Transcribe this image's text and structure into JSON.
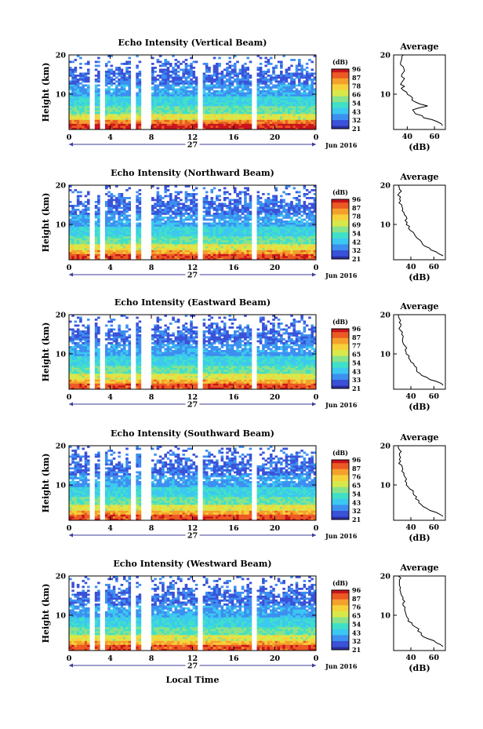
{
  "chart_data": [
    {
      "type": "heatmap",
      "title": "Echo Intensity (Vertical Beam)",
      "ylabel": "Height (km)",
      "y_ticks": [
        "20",
        "10"
      ],
      "x_ticks": [
        "0",
        "4",
        "8",
        "12",
        "16",
        "20",
        "0"
      ],
      "xlim": [
        0,
        24
      ],
      "ylim": [
        1,
        20
      ],
      "date_label": "27",
      "month_label": "Jun 2016",
      "colorbar": {
        "unit": "(dB)",
        "ticks": [
          "96",
          "87",
          "78",
          "66",
          "54",
          "43",
          "32",
          "21"
        ]
      },
      "average_profile": {
        "title": "Average",
        "xlabel": "(dB)",
        "x_ticks": [
          "40",
          "60"
        ],
        "y_ticks": [
          "20",
          "10"
        ],
        "xlim": [
          30,
          68
        ],
        "height": [
          2,
          3,
          4,
          5,
          6,
          7,
          8,
          9,
          10,
          11,
          12,
          13,
          14,
          15,
          16,
          17,
          18,
          19,
          20
        ],
        "value": [
          66,
          62,
          52,
          46,
          44,
          55,
          46,
          44,
          40,
          37,
          38,
          36,
          38,
          36,
          38,
          37,
          35,
          36,
          37
        ]
      }
    },
    {
      "type": "heatmap",
      "title": "Echo Intensity (Northward Beam)",
      "ylabel": "Height (km)",
      "y_ticks": [
        "20",
        "10"
      ],
      "x_ticks": [
        "0",
        "4",
        "8",
        "12",
        "16",
        "20",
        "0"
      ],
      "xlim": [
        0,
        24
      ],
      "ylim": [
        1,
        20
      ],
      "date_label": "27",
      "month_label": "Jun 2016",
      "colorbar": {
        "unit": "(dB)",
        "ticks": [
          "96",
          "87",
          "78",
          "69",
          "54",
          "42",
          "32",
          "21"
        ]
      },
      "average_profile": {
        "title": "Average",
        "xlabel": "(dB)",
        "x_ticks": [
          "40",
          "60"
        ],
        "y_ticks": [
          "20",
          "10"
        ],
        "xlim": [
          25,
          70
        ],
        "height": [
          2,
          3,
          4,
          5,
          6,
          7,
          8,
          9,
          10,
          11,
          12,
          13,
          14,
          15,
          16,
          17,
          18,
          19,
          20
        ],
        "value": [
          68,
          62,
          56,
          50,
          48,
          44,
          42,
          38,
          36,
          35,
          36,
          34,
          33,
          32,
          31,
          31,
          30,
          30,
          29
        ]
      }
    },
    {
      "type": "heatmap",
      "title": "Echo Intensity (Eastward Beam)",
      "ylabel": "Height (km)",
      "y_ticks": [
        "20",
        "10"
      ],
      "x_ticks": [
        "0",
        "4",
        "8",
        "12",
        "16",
        "20",
        "0"
      ],
      "xlim": [
        0,
        24
      ],
      "ylim": [
        1,
        20
      ],
      "date_label": "27",
      "month_label": "Jun 2016",
      "colorbar": {
        "unit": "(dB)",
        "ticks": [
          "96",
          "87",
          "77",
          "65",
          "54",
          "43",
          "33",
          "21"
        ]
      },
      "average_profile": {
        "title": "Average",
        "xlabel": "(dB)",
        "x_ticks": [
          "40",
          "60"
        ],
        "y_ticks": [
          "20",
          "10"
        ],
        "xlim": [
          25,
          70
        ],
        "height": [
          2,
          3,
          4,
          5,
          6,
          7,
          8,
          9,
          10,
          11,
          12,
          13,
          14,
          15,
          16,
          17,
          18,
          19,
          20
        ],
        "value": [
          68,
          62,
          54,
          48,
          45,
          43,
          40,
          38,
          36,
          35,
          35,
          33,
          33,
          32,
          31,
          31,
          30,
          30,
          29
        ]
      }
    },
    {
      "type": "heatmap",
      "title": "Echo Intensity (Southward Beam)",
      "ylabel": "Height (km)",
      "y_ticks": [
        "20",
        "10"
      ],
      "x_ticks": [
        "0",
        "4",
        "8",
        "12",
        "16",
        "20",
        "0"
      ],
      "xlim": [
        0,
        24
      ],
      "ylim": [
        1,
        20
      ],
      "date_label": "27",
      "month_label": "Jun 2016",
      "colorbar": {
        "unit": "(dB)",
        "ticks": [
          "96",
          "87",
          "76",
          "65",
          "54",
          "43",
          "32",
          "21"
        ]
      },
      "average_profile": {
        "title": "Average",
        "xlabel": "(dB)",
        "x_ticks": [
          "40",
          "60"
        ],
        "y_ticks": [
          "20",
          "10"
        ],
        "xlim": [
          25,
          70
        ],
        "height": [
          2,
          3,
          4,
          5,
          6,
          7,
          8,
          9,
          10,
          11,
          12,
          13,
          14,
          15,
          16,
          17,
          18,
          19,
          20
        ],
        "value": [
          68,
          62,
          54,
          49,
          47,
          45,
          42,
          39,
          36,
          35,
          35,
          34,
          33,
          32,
          31,
          31,
          30,
          30,
          29
        ]
      }
    },
    {
      "type": "heatmap",
      "title": "Echo Intensity (Westward Beam)",
      "ylabel": "Height (km)",
      "y_ticks": [
        "20",
        "10"
      ],
      "x_ticks": [
        "0",
        "4",
        "8",
        "12",
        "16",
        "20",
        "0"
      ],
      "xlim": [
        0,
        24
      ],
      "ylim": [
        1,
        20
      ],
      "date_label": "27",
      "month_label": "Jun 2016",
      "xlabel": "Local Time",
      "colorbar": {
        "unit": "(dB)",
        "ticks": [
          "96",
          "87",
          "76",
          "65",
          "54",
          "43",
          "32",
          "21"
        ]
      },
      "average_profile": {
        "title": "Average",
        "xlabel": "(dB)",
        "x_ticks": [
          "40",
          "60"
        ],
        "y_ticks": [
          "20",
          "10"
        ],
        "xlim": [
          25,
          70
        ],
        "height": [
          2,
          3,
          4,
          5,
          6,
          7,
          8,
          9,
          10,
          11,
          12,
          13,
          14,
          15,
          16,
          17,
          18,
          19,
          20
        ],
        "value": [
          68,
          62,
          55,
          49,
          46,
          44,
          41,
          38,
          36,
          35,
          35,
          33,
          33,
          32,
          31,
          31,
          30,
          30,
          29
        ]
      }
    }
  ],
  "colors": {
    "colormap": [
      "#2d2fa0",
      "#3a52d8",
      "#3d8ff0",
      "#3cc8f0",
      "#40e0c8",
      "#8ae28a",
      "#d8e84a",
      "#f6d23a",
      "#f4a02c",
      "#ec5a24",
      "#c8141c"
    ],
    "background": "#ffffff",
    "axis": "#000000",
    "date_arrow": "#3c3c9a"
  }
}
